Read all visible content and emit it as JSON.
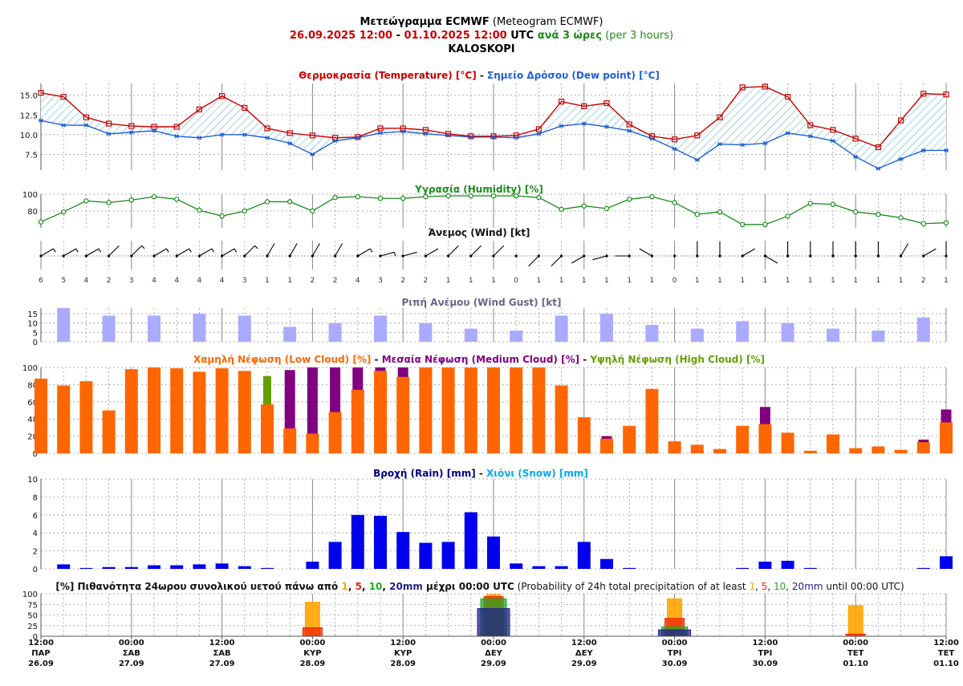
{
  "header": {
    "line1_bold": "Μετεώγραμμα ECMWF",
    "line1_rest": " (Meteogram ECMWF)",
    "line2_start": "26.09.2025 12:00",
    "line2_dash": " - ",
    "line2_end": "01.10.2025 12:00",
    "line2_utc": " UTC ",
    "line2_every": "ανά 3 ώρες",
    "line2_per": " (per 3 hours)",
    "location": "KALOSKOPI"
  },
  "colors": {
    "temperature": "#cc0000",
    "dewpoint": "#1f5fd6",
    "humidity": "#1a8c1a",
    "gust": "#aaaaff",
    "low_cloud": "#ff6600",
    "medium_cloud": "#800080",
    "high_cloud": "#66a000",
    "rain": "#0000ee",
    "snow": "#00aaee",
    "p1": "#ffa500",
    "p5": "#ee2200",
    "p10": "#22aa22",
    "p20": "#22228a"
  },
  "chart_data": [
    {
      "type": "line",
      "title_a": "Θερμοκρασία (Temperature) [°C]",
      "title_sep": " - ",
      "title_b": "Σημείο Δρόσου (Dew point) [°C]",
      "ylim": [
        5.5,
        16.5
      ],
      "yticks": [
        "15.0",
        "12.5",
        "10.0",
        "7.5"
      ],
      "series": [
        {
          "name": "Θερμοκρασία (Temperature) [°C]",
          "values": [
            15.3,
            14.8,
            12.2,
            11.4,
            11.1,
            11.0,
            11.0,
            13.2,
            14.9,
            13.4,
            10.8,
            10.2,
            9.9,
            9.6,
            9.7,
            10.8,
            10.8,
            10.6,
            10.1,
            9.8,
            9.8,
            9.9,
            10.7,
            14.2,
            13.6,
            14.0,
            11.3,
            9.8,
            9.4,
            9.9,
            12.2,
            16.0,
            16.1,
            14.8,
            11.2,
            10.6,
            9.5,
            8.4,
            11.8,
            15.2,
            15.1
          ]
        },
        {
          "name": "Σημείο Δρόσου (Dew point) [°C]",
          "values": [
            11.8,
            11.2,
            11.2,
            10.1,
            10.3,
            10.5,
            9.8,
            9.6,
            10.0,
            10.0,
            9.6,
            8.9,
            7.5,
            9.2,
            9.6,
            10.2,
            10.4,
            10.1,
            9.9,
            9.7,
            9.7,
            9.6,
            10.1,
            11.1,
            11.4,
            11.0,
            10.5,
            9.5,
            8.2,
            6.8,
            8.8,
            8.7,
            8.9,
            10.2,
            9.8,
            9.2,
            7.2,
            5.7,
            6.9,
            8.0,
            8.0
          ]
        }
      ]
    },
    {
      "type": "line",
      "title": "Υγρασία (Humidity) [%]",
      "ylim": [
        60,
        100
      ],
      "yticks": [
        "100",
        "80"
      ],
      "series": [
        {
          "name": "Υγρασία (Humidity) [%]",
          "values": [
            67,
            79,
            92,
            90,
            93,
            97,
            94,
            81,
            74,
            80,
            91,
            91,
            80,
            96,
            97,
            95,
            95,
            97,
            98,
            98,
            98,
            98,
            96,
            82,
            86,
            83,
            94,
            97,
            90,
            76,
            79,
            64,
            64,
            74,
            89,
            88,
            79,
            76,
            72,
            65,
            66
          ]
        }
      ]
    },
    {
      "type": "table",
      "title": "Άνεμος (Wind) [kt]",
      "speeds": [
        6,
        5,
        4,
        2,
        3,
        4,
        4,
        4,
        4,
        3,
        1,
        1,
        2,
        2,
        4,
        3,
        2,
        2,
        1,
        1,
        1,
        0,
        1,
        1,
        1,
        1,
        1,
        1,
        0,
        1,
        1,
        1,
        1,
        1,
        1,
        1,
        1,
        1,
        1,
        2,
        1
      ],
      "direction_deg": [
        60,
        60,
        60,
        45,
        45,
        60,
        60,
        60,
        60,
        45,
        30,
        30,
        30,
        30,
        60,
        75,
        75,
        60,
        45,
        45,
        45,
        0,
        225,
        225,
        240,
        255,
        270,
        300,
        0,
        0,
        0,
        60,
        120,
        0,
        0,
        0,
        0,
        0,
        30,
        60,
        0
      ]
    },
    {
      "type": "bar",
      "title": "Ριπή Ανέμου (Wind Gust) [kt]",
      "ylim": [
        0,
        18
      ],
      "yticks": [
        "15",
        "10",
        "5",
        "0"
      ],
      "values": [
        null,
        18,
        null,
        14,
        null,
        14,
        null,
        15,
        null,
        14,
        null,
        8,
        null,
        10,
        null,
        14,
        null,
        10,
        null,
        7,
        null,
        6,
        null,
        14,
        null,
        15,
        null,
        9,
        null,
        7,
        null,
        11,
        null,
        10,
        null,
        7,
        null,
        6,
        null,
        13,
        null
      ]
    },
    {
      "type": "bar",
      "title_low": "Χαμηλή Νέφωση (Low Cloud) [%]",
      "title_medium": "Μεσαία Νέφωση (Medium Cloud) [%]",
      "title_high": "Υψηλή Νέφωση (High Cloud) [%]",
      "title_sep": " - ",
      "ylim": [
        0,
        100
      ],
      "yticks": [
        "100",
        "80",
        "60",
        "40",
        "20",
        "0"
      ],
      "series": [
        {
          "name": "Χαμηλή Νέφωση (Low Cloud) [%]",
          "values": [
            87,
            79,
            84,
            50,
            98,
            100,
            99,
            95,
            99,
            96,
            57,
            29,
            23,
            48,
            74,
            96,
            89,
            100,
            100,
            100,
            100,
            100,
            100,
            79,
            42,
            17,
            32,
            75,
            14,
            10,
            5,
            32,
            34,
            24,
            3,
            22,
            6,
            8,
            4,
            13,
            36
          ]
        },
        {
          "name": "Μεσαία Νέφωση (Medium Cloud) [%]",
          "values": [
            0,
            0,
            0,
            0,
            0,
            0,
            0,
            0,
            0,
            0,
            0,
            97,
            100,
            100,
            100,
            100,
            100,
            0,
            0,
            0,
            0,
            0,
            0,
            0,
            0,
            20,
            0,
            0,
            0,
            0,
            0,
            0,
            54,
            0,
            0,
            0,
            0,
            0,
            0,
            16,
            51
          ]
        },
        {
          "name": "Υψηλή Νέφωση (High Cloud) [%]",
          "values": [
            0,
            0,
            0,
            0,
            0,
            0,
            0,
            0,
            0,
            0,
            90,
            0,
            0,
            0,
            0,
            0,
            0,
            0,
            0,
            0,
            0,
            0,
            0,
            0,
            0,
            0,
            0,
            0,
            0,
            0,
            0,
            0,
            0,
            0,
            0,
            0,
            0,
            0,
            0,
            0,
            0
          ]
        }
      ]
    },
    {
      "type": "bar",
      "title_a": "Βροχή (Rain) [mm]",
      "title_sep": " - ",
      "title_b": "Χιόνι (Snow) [mm]",
      "ylim": [
        0,
        10
      ],
      "yticks": [
        "10",
        "8",
        "6",
        "4",
        "2",
        "0"
      ],
      "series": [
        {
          "name": "Βροχή (Rain) [mm]",
          "values": [
            0,
            0.5,
            0.1,
            0.2,
            0.2,
            0.4,
            0.4,
            0.5,
            0.6,
            0.3,
            0.1,
            0,
            0.8,
            3.0,
            6.0,
            5.9,
            4.1,
            2.9,
            3.0,
            6.3,
            3.6,
            0.6,
            0.3,
            0.3,
            3.0,
            1.1,
            0.1,
            0,
            0,
            0,
            0,
            0.1,
            0.8,
            0.9,
            0.1,
            0,
            0,
            0,
            0,
            0.1,
            1.4
          ]
        }
      ]
    },
    {
      "type": "bar",
      "title_a": "[%] Πιθανότητα 24ωρου συνολικού υετού πάνω από ",
      "title_b": " μέχρι 00:00 UTC",
      "title_c": " (Probability of 24h total precipitation of at least ",
      "title_d": " until 00:00 UTC)",
      "title_sep": ", ",
      "threshold_labels": [
        "1",
        "5",
        "10",
        "20mm"
      ],
      "ylim": [
        0,
        100
      ],
      "yticks": [
        "100",
        "75",
        "50",
        "25",
        "0"
      ],
      "days": [
        {
          "x_index": 12,
          "p1": 80,
          "p5": 20,
          "p10": 0,
          "p20": 0
        },
        {
          "x_index": 20,
          "p1": 98,
          "p5": 93,
          "p10": 88,
          "p20": 65
        },
        {
          "x_index": 28,
          "p1": 88,
          "p5": 42,
          "p10": 22,
          "p20": 15
        },
        {
          "x_index": 36,
          "p1": 72,
          "p5": 5,
          "p10": 0,
          "p20": 0
        }
      ]
    }
  ],
  "x_axis": {
    "sub_ticks": [
      "6",
      "5",
      "4",
      "2",
      "3",
      "4",
      "4",
      "4",
      "4",
      "3",
      "1",
      "1",
      "2",
      "2",
      "4",
      "3",
      "2",
      "2",
      "1",
      "1",
      "1",
      "0",
      "1",
      "1",
      "1",
      "1",
      "1",
      "1",
      "0",
      "1",
      "1",
      "1",
      "1",
      "1",
      "1",
      "1",
      "1",
      "1",
      "1",
      "2",
      "1"
    ],
    "labels": [
      {
        "time": "12:00",
        "day": "ΠΑΡ",
        "date": "26.09"
      },
      {
        "time": "00:00",
        "day": "ΣΑΒ",
        "date": "27.09"
      },
      {
        "time": "12:00",
        "day": "ΣΑΒ",
        "date": "27.09"
      },
      {
        "time": "00:00",
        "day": "ΚΥΡ",
        "date": "28.09"
      },
      {
        "time": "12:00",
        "day": "ΚΥΡ",
        "date": "28.09"
      },
      {
        "time": "00:00",
        "day": "ΔΕΥ",
        "date": "29.09"
      },
      {
        "time": "12:00",
        "day": "ΔΕΥ",
        "date": "29.09"
      },
      {
        "time": "00:00",
        "day": "ΤΡΙ",
        "date": "30.09"
      },
      {
        "time": "12:00",
        "day": "ΤΡΙ",
        "date": "30.09"
      },
      {
        "time": "00:00",
        "day": "ΤΕΤ",
        "date": "01.10"
      },
      {
        "time": "12:00",
        "day": "ΤΕΤ",
        "date": "01.10"
      }
    ]
  }
}
